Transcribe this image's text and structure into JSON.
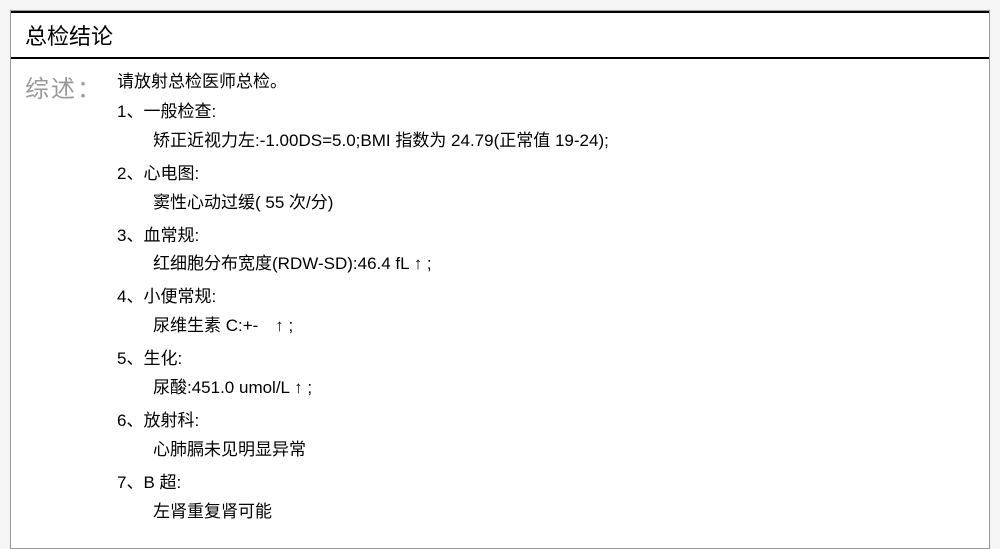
{
  "report": {
    "header_title": "总检结论",
    "summary_label": "综述：",
    "intro": "请放射总检医师总检。",
    "sections": [
      {
        "num": "1",
        "title": "一般检查:",
        "detail": "矫正近视力左:-1.00DS=5.0;BMI 指数为 24.79(正常值 19-24);"
      },
      {
        "num": "2",
        "title": "心电图:",
        "detail": "窦性心动过缓( 55 次/分)"
      },
      {
        "num": "3",
        "title": "血常规:",
        "detail": "红细胞分布宽度(RDW-SD):46.4 fL ↑ ;"
      },
      {
        "num": "4",
        "title": "小便常规:",
        "detail": "尿维生素 C:+-　↑ ;"
      },
      {
        "num": "5",
        "title": "生化:",
        "detail": "尿酸:451.0 umol/L ↑ ;"
      },
      {
        "num": "6",
        "title": "放射科:",
        "detail": "心肺膈未见明显异常"
      },
      {
        "num": "7",
        "title": "B 超:",
        "detail": "左肾重复肾可能"
      }
    ]
  },
  "style": {
    "font_family": "Microsoft YaHei",
    "title_fontsize": 22,
    "label_fontsize": 24,
    "body_fontsize": 17,
    "label_color": "#9a9a9a",
    "text_color": "#000000",
    "background_color": "#ffffff",
    "page_background": "#f5f5f5",
    "border_color": "#000000",
    "outer_border_color": "#999999"
  }
}
